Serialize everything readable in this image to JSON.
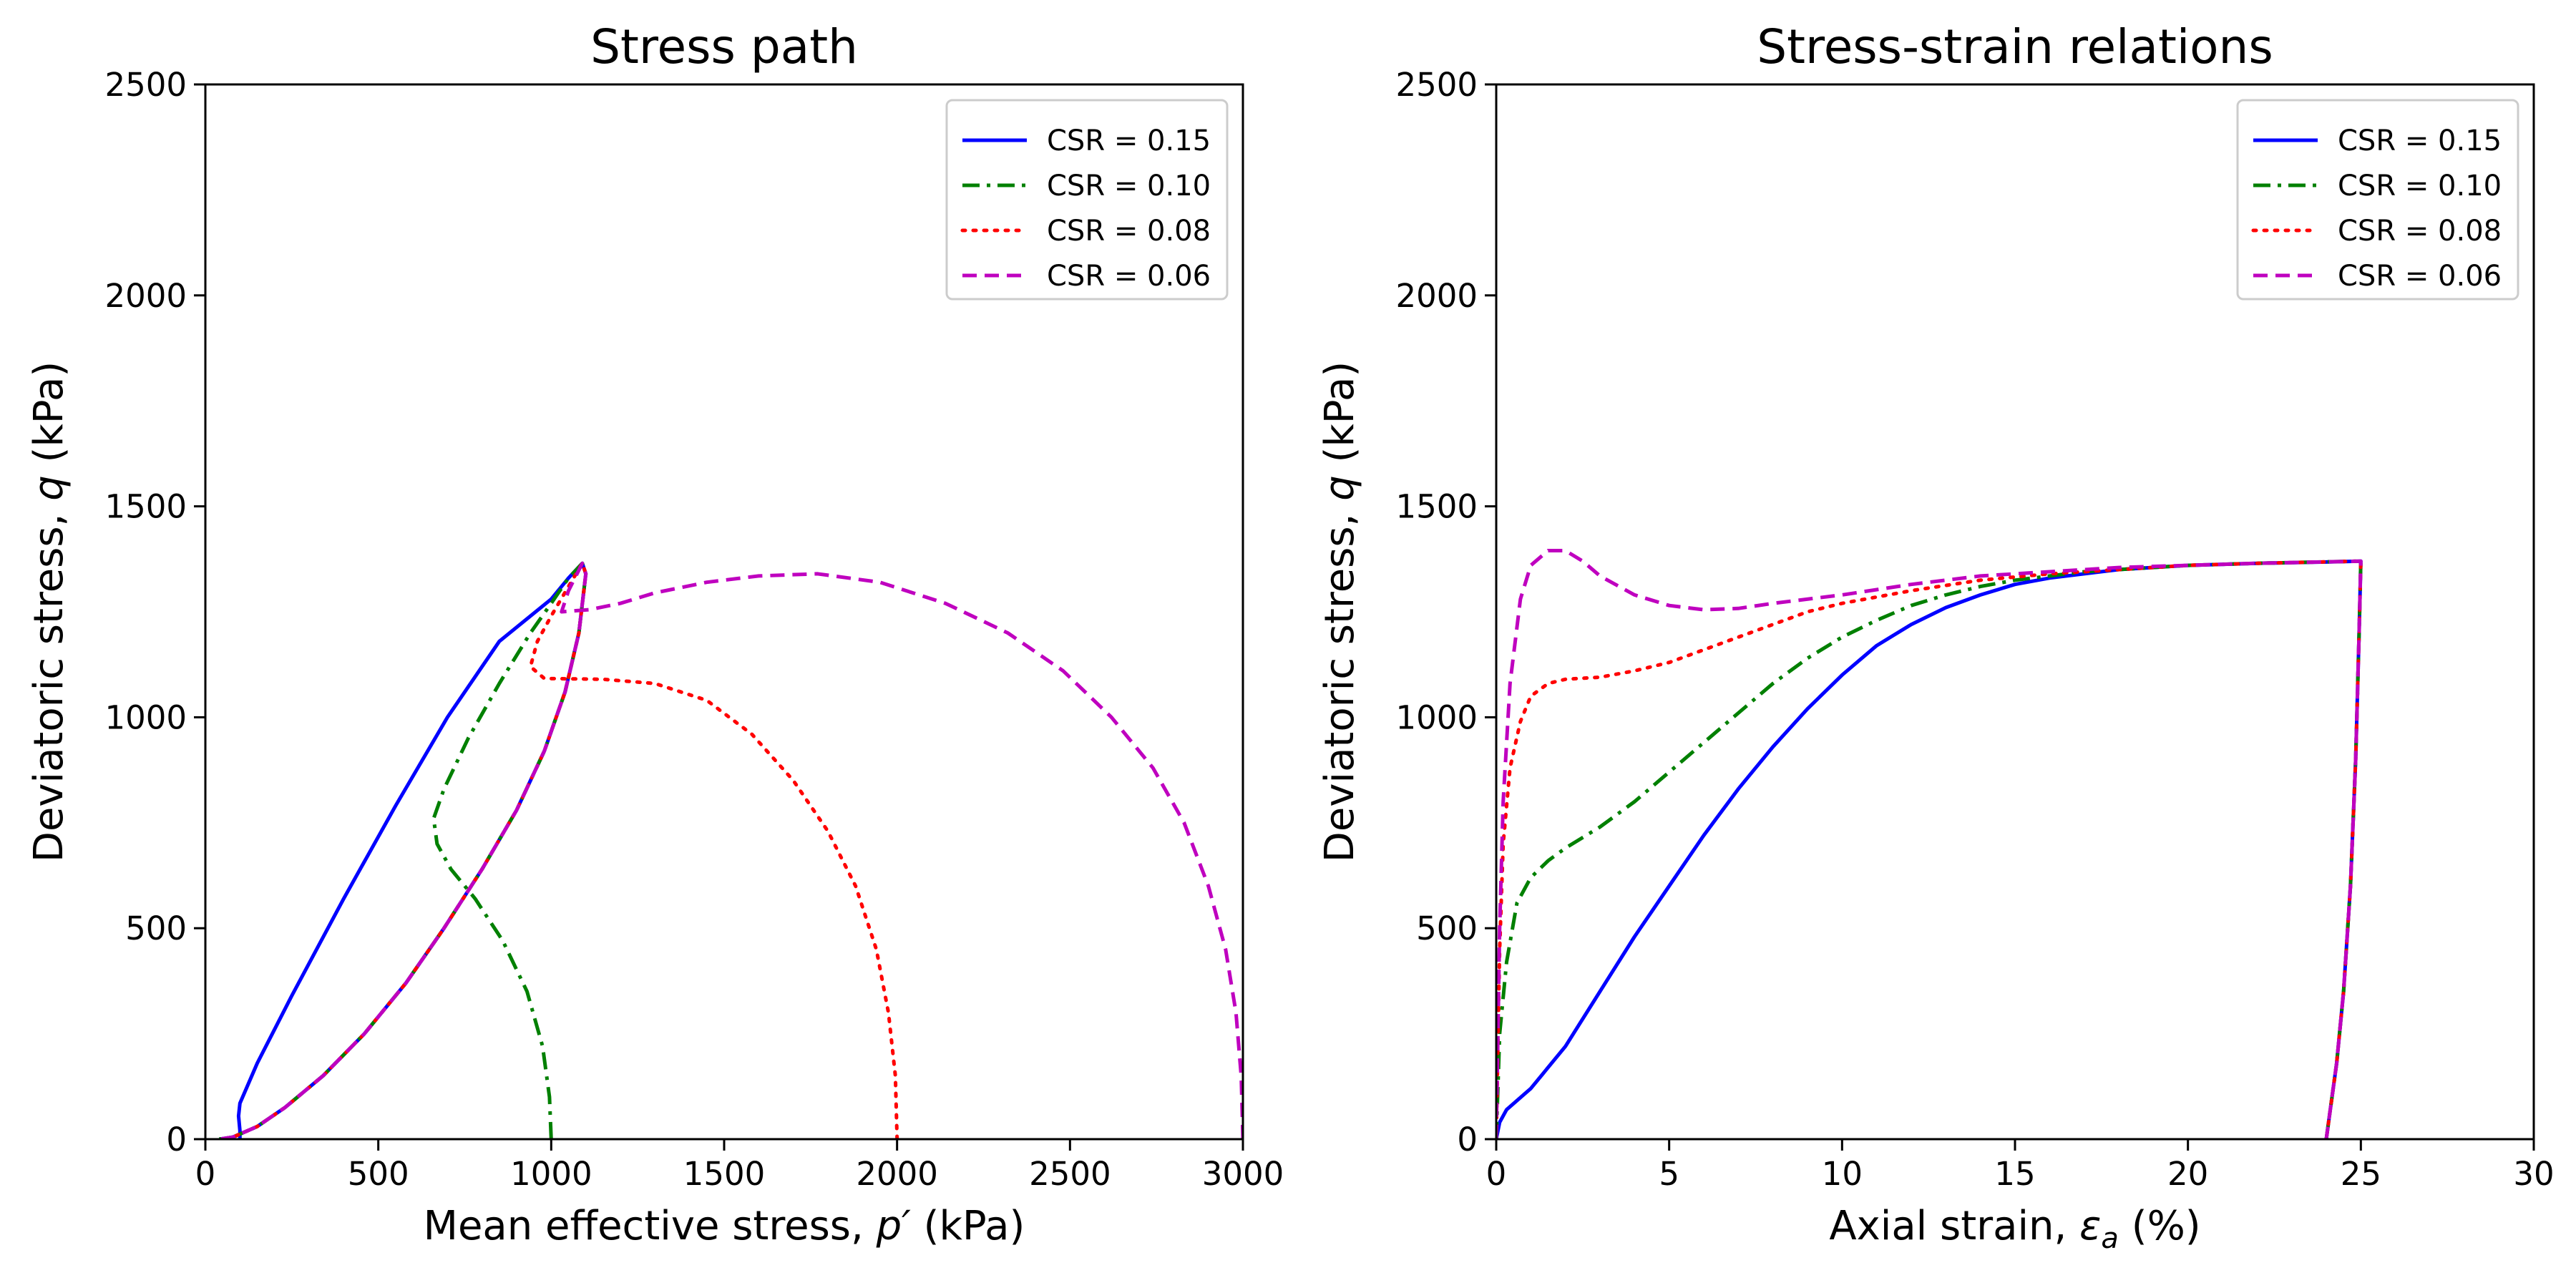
{
  "chart_data": [
    {
      "type": "line",
      "title": "Stress path",
      "xlabel": "Mean effective stress, p′ (kPa)",
      "ylabel": "Deviatoric stress, q (kPa)",
      "xlim": [
        0,
        3000
      ],
      "ylim": [
        0,
        2500
      ],
      "xticks": [
        "0",
        "500",
        "1000",
        "1500",
        "2000",
        "2500",
        "3000"
      ],
      "yticks": [
        "0",
        "500",
        "1000",
        "1500",
        "2000",
        "2500"
      ],
      "grid": false,
      "legend_position": "top-right",
      "series": [
        {
          "name": "CSR = 0.15",
          "color": "#0000ff",
          "style": "solid",
          "points": [
            [
              100,
              0
            ],
            [
              100,
              20
            ],
            [
              96,
              55
            ],
            [
              100,
              85
            ],
            [
              150,
              180
            ],
            [
              250,
              340
            ],
            [
              400,
              570
            ],
            [
              550,
              790
            ],
            [
              700,
              1000
            ],
            [
              850,
              1180
            ],
            [
              1000,
              1280
            ],
            [
              1050,
              1330
            ],
            [
              1090,
              1365
            ],
            [
              1100,
              1340
            ],
            [
              1080,
              1200
            ],
            [
              1040,
              1060
            ],
            [
              980,
              920
            ],
            [
              900,
              780
            ],
            [
              800,
              640
            ],
            [
              690,
              500
            ],
            [
              580,
              370
            ],
            [
              460,
              250
            ],
            [
              340,
              150
            ],
            [
              230,
              75
            ],
            [
              150,
              30
            ],
            [
              80,
              5
            ],
            [
              40,
              0
            ]
          ]
        },
        {
          "name": "CSR = 0.10",
          "color": "#008000",
          "style": "dashdot",
          "points": [
            [
              1000,
              0
            ],
            [
              995,
              100
            ],
            [
              975,
              220
            ],
            [
              930,
              350
            ],
            [
              860,
              470
            ],
            [
              780,
              570
            ],
            [
              710,
              640
            ],
            [
              670,
              700
            ],
            [
              660,
              760
            ],
            [
              690,
              830
            ],
            [
              760,
              950
            ],
            [
              850,
              1080
            ],
            [
              940,
              1200
            ],
            [
              1000,
              1270
            ],
            [
              1050,
              1330
            ],
            [
              1090,
              1365
            ],
            [
              1100,
              1340
            ],
            [
              1080,
              1200
            ],
            [
              1040,
              1060
            ],
            [
              980,
              920
            ],
            [
              900,
              780
            ],
            [
              800,
              640
            ],
            [
              690,
              500
            ],
            [
              580,
              370
            ],
            [
              460,
              250
            ],
            [
              340,
              150
            ],
            [
              230,
              75
            ],
            [
              150,
              30
            ],
            [
              80,
              5
            ],
            [
              40,
              0
            ]
          ]
        },
        {
          "name": "CSR = 0.08",
          "color": "#ff0000",
          "style": "dotted",
          "points": [
            [
              2000,
              0
            ],
            [
              1995,
              150
            ],
            [
              1975,
              300
            ],
            [
              1940,
              450
            ],
            [
              1880,
              600
            ],
            [
              1800,
              730
            ],
            [
              1700,
              850
            ],
            [
              1580,
              960
            ],
            [
              1450,
              1040
            ],
            [
              1300,
              1080
            ],
            [
              1150,
              1090
            ],
            [
              980,
              1092
            ],
            [
              940,
              1120
            ],
            [
              960,
              1180
            ],
            [
              1000,
              1240
            ],
            [
              1050,
              1310
            ],
            [
              1090,
              1365
            ],
            [
              1100,
              1340
            ],
            [
              1080,
              1200
            ],
            [
              1040,
              1060
            ],
            [
              980,
              920
            ],
            [
              900,
              780
            ],
            [
              800,
              640
            ],
            [
              690,
              500
            ],
            [
              580,
              370
            ],
            [
              460,
              250
            ],
            [
              340,
              150
            ],
            [
              230,
              75
            ],
            [
              150,
              30
            ],
            [
              80,
              5
            ],
            [
              40,
              0
            ]
          ]
        },
        {
          "name": "CSR = 0.06",
          "color": "#bf00bf",
          "style": "dashed",
          "points": [
            [
              3000,
              0
            ],
            [
              2995,
              150
            ],
            [
              2980,
              300
            ],
            [
              2950,
              450
            ],
            [
              2900,
              600
            ],
            [
              2830,
              750
            ],
            [
              2740,
              880
            ],
            [
              2620,
              1000
            ],
            [
              2480,
              1110
            ],
            [
              2320,
              1200
            ],
            [
              2140,
              1270
            ],
            [
              1950,
              1320
            ],
            [
              1770,
              1340
            ],
            [
              1600,
              1335
            ],
            [
              1450,
              1320
            ],
            [
              1300,
              1295
            ],
            [
              1200,
              1270
            ],
            [
              1110,
              1255
            ],
            [
              1030,
              1250
            ],
            [
              1050,
              1300
            ],
            [
              1090,
              1365
            ],
            [
              1100,
              1340
            ],
            [
              1080,
              1200
            ],
            [
              1040,
              1060
            ],
            [
              980,
              920
            ],
            [
              900,
              780
            ],
            [
              800,
              640
            ],
            [
              690,
              500
            ],
            [
              580,
              370
            ],
            [
              460,
              250
            ],
            [
              340,
              150
            ],
            [
              230,
              75
            ],
            [
              150,
              30
            ],
            [
              80,
              5
            ],
            [
              40,
              0
            ]
          ]
        }
      ],
      "legend": [
        "CSR = 0.15",
        "CSR = 0.10",
        "CSR = 0.08",
        "CSR = 0.06"
      ]
    },
    {
      "type": "line",
      "title": "Stress-strain relations",
      "xlabel": "Axial strain, εa (%)",
      "ylabel": "Deviatoric stress, q (kPa)",
      "xlim": [
        0,
        30
      ],
      "ylim": [
        0,
        2500
      ],
      "xticks": [
        "0",
        "5",
        "10",
        "15",
        "20",
        "25",
        "30"
      ],
      "yticks": [
        "0",
        "500",
        "1000",
        "1500",
        "2000",
        "2500"
      ],
      "grid": false,
      "legend_position": "top-right",
      "series": [
        {
          "name": "CSR = 0.15",
          "color": "#0000ff",
          "style": "solid",
          "points": [
            [
              0,
              0
            ],
            [
              0.1,
              40
            ],
            [
              0.3,
              70
            ],
            [
              1,
              120
            ],
            [
              2,
              220
            ],
            [
              3,
              350
            ],
            [
              4,
              480
            ],
            [
              5,
              600
            ],
            [
              6,
              720
            ],
            [
              7,
              830
            ],
            [
              8,
              930
            ],
            [
              9,
              1020
            ],
            [
              10,
              1100
            ],
            [
              11,
              1170
            ],
            [
              12,
              1220
            ],
            [
              13,
              1260
            ],
            [
              14,
              1290
            ],
            [
              15,
              1315
            ],
            [
              16,
              1330
            ],
            [
              18,
              1350
            ],
            [
              20,
              1360
            ],
            [
              22,
              1365
            ],
            [
              24,
              1368
            ],
            [
              25,
              1370
            ],
            [
              24.95,
              1200
            ],
            [
              24.85,
              900
            ],
            [
              24.7,
              600
            ],
            [
              24.5,
              350
            ],
            [
              24.3,
              180
            ],
            [
              24.1,
              60
            ],
            [
              24,
              0
            ]
          ]
        },
        {
          "name": "CSR = 0.10",
          "color": "#008000",
          "style": "dashdot",
          "points": [
            [
              0,
              0
            ],
            [
              0.1,
              250
            ],
            [
              0.3,
              420
            ],
            [
              0.6,
              560
            ],
            [
              1,
              620
            ],
            [
              1.5,
              660
            ],
            [
              2,
              690
            ],
            [
              3,
              740
            ],
            [
              4,
              800
            ],
            [
              5,
              870
            ],
            [
              6,
              940
            ],
            [
              7,
              1010
            ],
            [
              8,
              1080
            ],
            [
              9,
              1140
            ],
            [
              10,
              1190
            ],
            [
              11,
              1230
            ],
            [
              12,
              1265
            ],
            [
              13,
              1290
            ],
            [
              14,
              1310
            ],
            [
              15,
              1325
            ],
            [
              17,
              1345
            ],
            [
              20,
              1360
            ],
            [
              22,
              1365
            ],
            [
              25,
              1370
            ],
            [
              24.95,
              1200
            ],
            [
              24.85,
              900
            ],
            [
              24.7,
              600
            ],
            [
              24.5,
              350
            ],
            [
              24.3,
              180
            ],
            [
              24.1,
              60
            ],
            [
              24,
              0
            ]
          ]
        },
        {
          "name": "CSR = 0.08",
          "color": "#ff0000",
          "style": "dotted",
          "points": [
            [
              0,
              0
            ],
            [
              0.1,
              450
            ],
            [
              0.2,
              700
            ],
            [
              0.4,
              880
            ],
            [
              0.7,
              990
            ],
            [
              1,
              1050
            ],
            [
              1.5,
              1080
            ],
            [
              2,
              1090
            ],
            [
              3,
              1095
            ],
            [
              4,
              1110
            ],
            [
              5,
              1130
            ],
            [
              6,
              1160
            ],
            [
              7,
              1190
            ],
            [
              8,
              1220
            ],
            [
              9,
              1250
            ],
            [
              10,
              1270
            ],
            [
              12,
              1300
            ],
            [
              14,
              1325
            ],
            [
              16,
              1340
            ],
            [
              18,
              1350
            ],
            [
              20,
              1360
            ],
            [
              22,
              1365
            ],
            [
              25,
              1370
            ],
            [
              24.95,
              1200
            ],
            [
              24.85,
              900
            ],
            [
              24.7,
              600
            ],
            [
              24.5,
              350
            ],
            [
              24.3,
              180
            ],
            [
              24.1,
              60
            ],
            [
              24,
              0
            ]
          ]
        },
        {
          "name": "CSR = 0.06",
          "color": "#bf00bf",
          "style": "dashed",
          "points": [
            [
              0,
              0
            ],
            [
              0.1,
              500
            ],
            [
              0.2,
              800
            ],
            [
              0.4,
              1080
            ],
            [
              0.7,
              1280
            ],
            [
              1,
              1360
            ],
            [
              1.5,
              1395
            ],
            [
              2,
              1395
            ],
            [
              2.5,
              1370
            ],
            [
              3,
              1335
            ],
            [
              4,
              1290
            ],
            [
              5,
              1265
            ],
            [
              6,
              1255
            ],
            [
              7,
              1258
            ],
            [
              8,
              1270
            ],
            [
              10,
              1290
            ],
            [
              12,
              1315
            ],
            [
              14,
              1335
            ],
            [
              16,
              1345
            ],
            [
              18,
              1355
            ],
            [
              20,
              1360
            ],
            [
              22,
              1365
            ],
            [
              25,
              1370
            ],
            [
              24.95,
              1200
            ],
            [
              24.85,
              900
            ],
            [
              24.7,
              600
            ],
            [
              24.5,
              350
            ],
            [
              24.3,
              180
            ],
            [
              24.1,
              60
            ],
            [
              24,
              0
            ]
          ]
        }
      ],
      "legend": [
        "CSR = 0.15",
        "CSR = 0.10",
        "CSR = 0.08",
        "CSR = 0.06"
      ]
    }
  ]
}
